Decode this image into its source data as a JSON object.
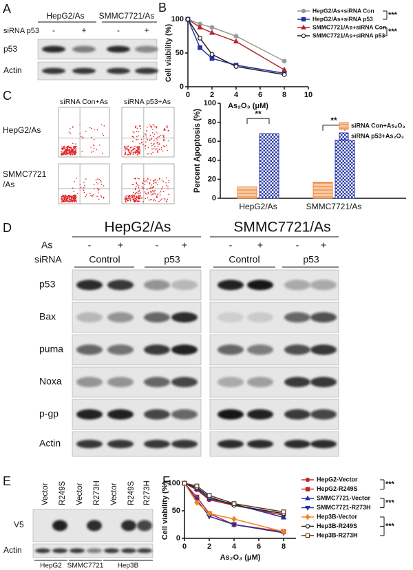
{
  "panel_labels": [
    "A",
    "B",
    "C",
    "D",
    "E",
    "F"
  ],
  "panel_a": {
    "cell_lines": [
      "HepG2/As",
      "SMMC7721/As"
    ],
    "row_header": "siRNA p53",
    "treatments": [
      "-",
      "+",
      "-",
      "+"
    ],
    "blot_rows": [
      "p53",
      "Actin"
    ]
  },
  "panel_c_flow": {
    "columns": [
      "siRNA Con+As",
      "siRNA p53+As"
    ],
    "rows": [
      "HepG2/As",
      "SMMC7721\n/As"
    ]
  },
  "panel_d": {
    "cell_lines": [
      "HepG2/As",
      "SMMC7721/As"
    ],
    "as_label": "As",
    "as_signs": [
      "-",
      "+",
      "-",
      "+",
      "-",
      "+",
      "-",
      "+"
    ],
    "sirna_label": "siRNA",
    "sirna_groups": [
      "Control",
      "p53",
      "Control",
      "p53"
    ],
    "blot_rows": [
      "p53",
      "Bax",
      "puma",
      "Noxa",
      "p-gp",
      "Actin"
    ]
  },
  "panel_e": {
    "lanes": [
      "Vector",
      "R249S",
      "Vector",
      "R273H",
      "Vector",
      "R249S",
      "R273H"
    ],
    "blot_rows": [
      "V5",
      "Actin"
    ],
    "groups": [
      "HepG2",
      "SMMC7721",
      "Hep3B"
    ]
  },
  "chart_data": [
    {
      "type": "line",
      "xlabel": "As₂O₃ (μM)",
      "ylabel": "Cell viability (%)",
      "x": [
        0,
        1,
        2,
        4,
        8
      ],
      "xlim": [
        0,
        10
      ],
      "xticks": [
        0,
        2,
        4,
        6,
        8,
        10
      ],
      "ylim": [
        0,
        100
      ],
      "yticks": [
        0,
        50,
        100
      ],
      "grid": false,
      "series": [
        {
          "name": "HepG2/As+siRNA Con",
          "color": "#9a9a9a",
          "marker": "circle",
          "open": false,
          "values": [
            100,
            93,
            88,
            75,
            38
          ]
        },
        {
          "name": "HepG2/As+siRNA p53",
          "color": "#2633a6",
          "marker": "square",
          "open": false,
          "values": [
            100,
            58,
            42,
            32,
            20
          ]
        },
        {
          "name": "SMMC7721/As+siRNA Con",
          "color": "#b3262b",
          "marker": "triangle",
          "open": false,
          "values": [
            100,
            88,
            80,
            67,
            25
          ]
        },
        {
          "name": "SMMC7721/As+siRNA p53",
          "color": "#222222",
          "marker": "circle",
          "open": true,
          "values": [
            100,
            72,
            48,
            30,
            18
          ]
        }
      ],
      "annotations": [
        "***",
        "***"
      ]
    },
    {
      "type": "bar",
      "ylabel": "Percent Apoptosis (%)",
      "categories": [
        "HepG2/As",
        "SMMC7721/As"
      ],
      "ylim": [
        0,
        100
      ],
      "yticks": [
        0,
        20,
        40,
        60,
        80,
        100
      ],
      "grid": false,
      "series": [
        {
          "name": "siRNA Con+As₂O₃",
          "color": "#f0883a",
          "hatch": "lines",
          "values": [
            12,
            17
          ]
        },
        {
          "name": "siRNA p53+As₂O₃",
          "color": "#2b3aa8",
          "hatch": "checker",
          "values": [
            68,
            61
          ]
        }
      ],
      "annotations": [
        "**",
        "**"
      ]
    },
    {
      "type": "line",
      "xlabel": "As₂O₃ (μM)",
      "ylabel": "Cell viability (%)",
      "x": [
        0,
        1,
        2,
        4,
        8
      ],
      "xlim": [
        0,
        9
      ],
      "xticks": [
        0,
        2,
        4,
        6,
        8
      ],
      "ylim": [
        0,
        100
      ],
      "yticks": [
        0,
        50,
        100
      ],
      "grid": false,
      "series": [
        {
          "name": "HepG2-Vector",
          "color": "#c0282d",
          "marker": "circle",
          "open": false,
          "values": [
            100,
            88,
            70,
            60,
            42
          ]
        },
        {
          "name": "HepG2-R249S",
          "color": "#c0282d",
          "marker": "square",
          "open": false,
          "values": [
            100,
            75,
            45,
            25,
            12
          ]
        },
        {
          "name": "SMMC7721-Vector",
          "color": "#2231a0",
          "marker": "triangle",
          "open": false,
          "values": [
            100,
            90,
            72,
            62,
            38
          ]
        },
        {
          "name": "SMMC7721-R273H",
          "color": "#2231a0",
          "marker": "triangle-down",
          "open": false,
          "values": [
            100,
            70,
            40,
            25,
            10
          ]
        },
        {
          "name": "Hep3B-Vector",
          "color": "#f58220",
          "marker": "diamond",
          "open": false,
          "values": [
            100,
            65,
            45,
            35,
            12
          ]
        },
        {
          "name": "Hep3B-R249S",
          "color": "#222222",
          "marker": "circle",
          "open": true,
          "values": [
            100,
            92,
            75,
            60,
            45
          ]
        },
        {
          "name": "Hep3B-R273H",
          "color": "#5a3a1a",
          "marker": "square",
          "open": true,
          "values": [
            100,
            95,
            78,
            63,
            48
          ]
        }
      ],
      "annotations": [
        "***",
        "***",
        "***"
      ]
    }
  ]
}
